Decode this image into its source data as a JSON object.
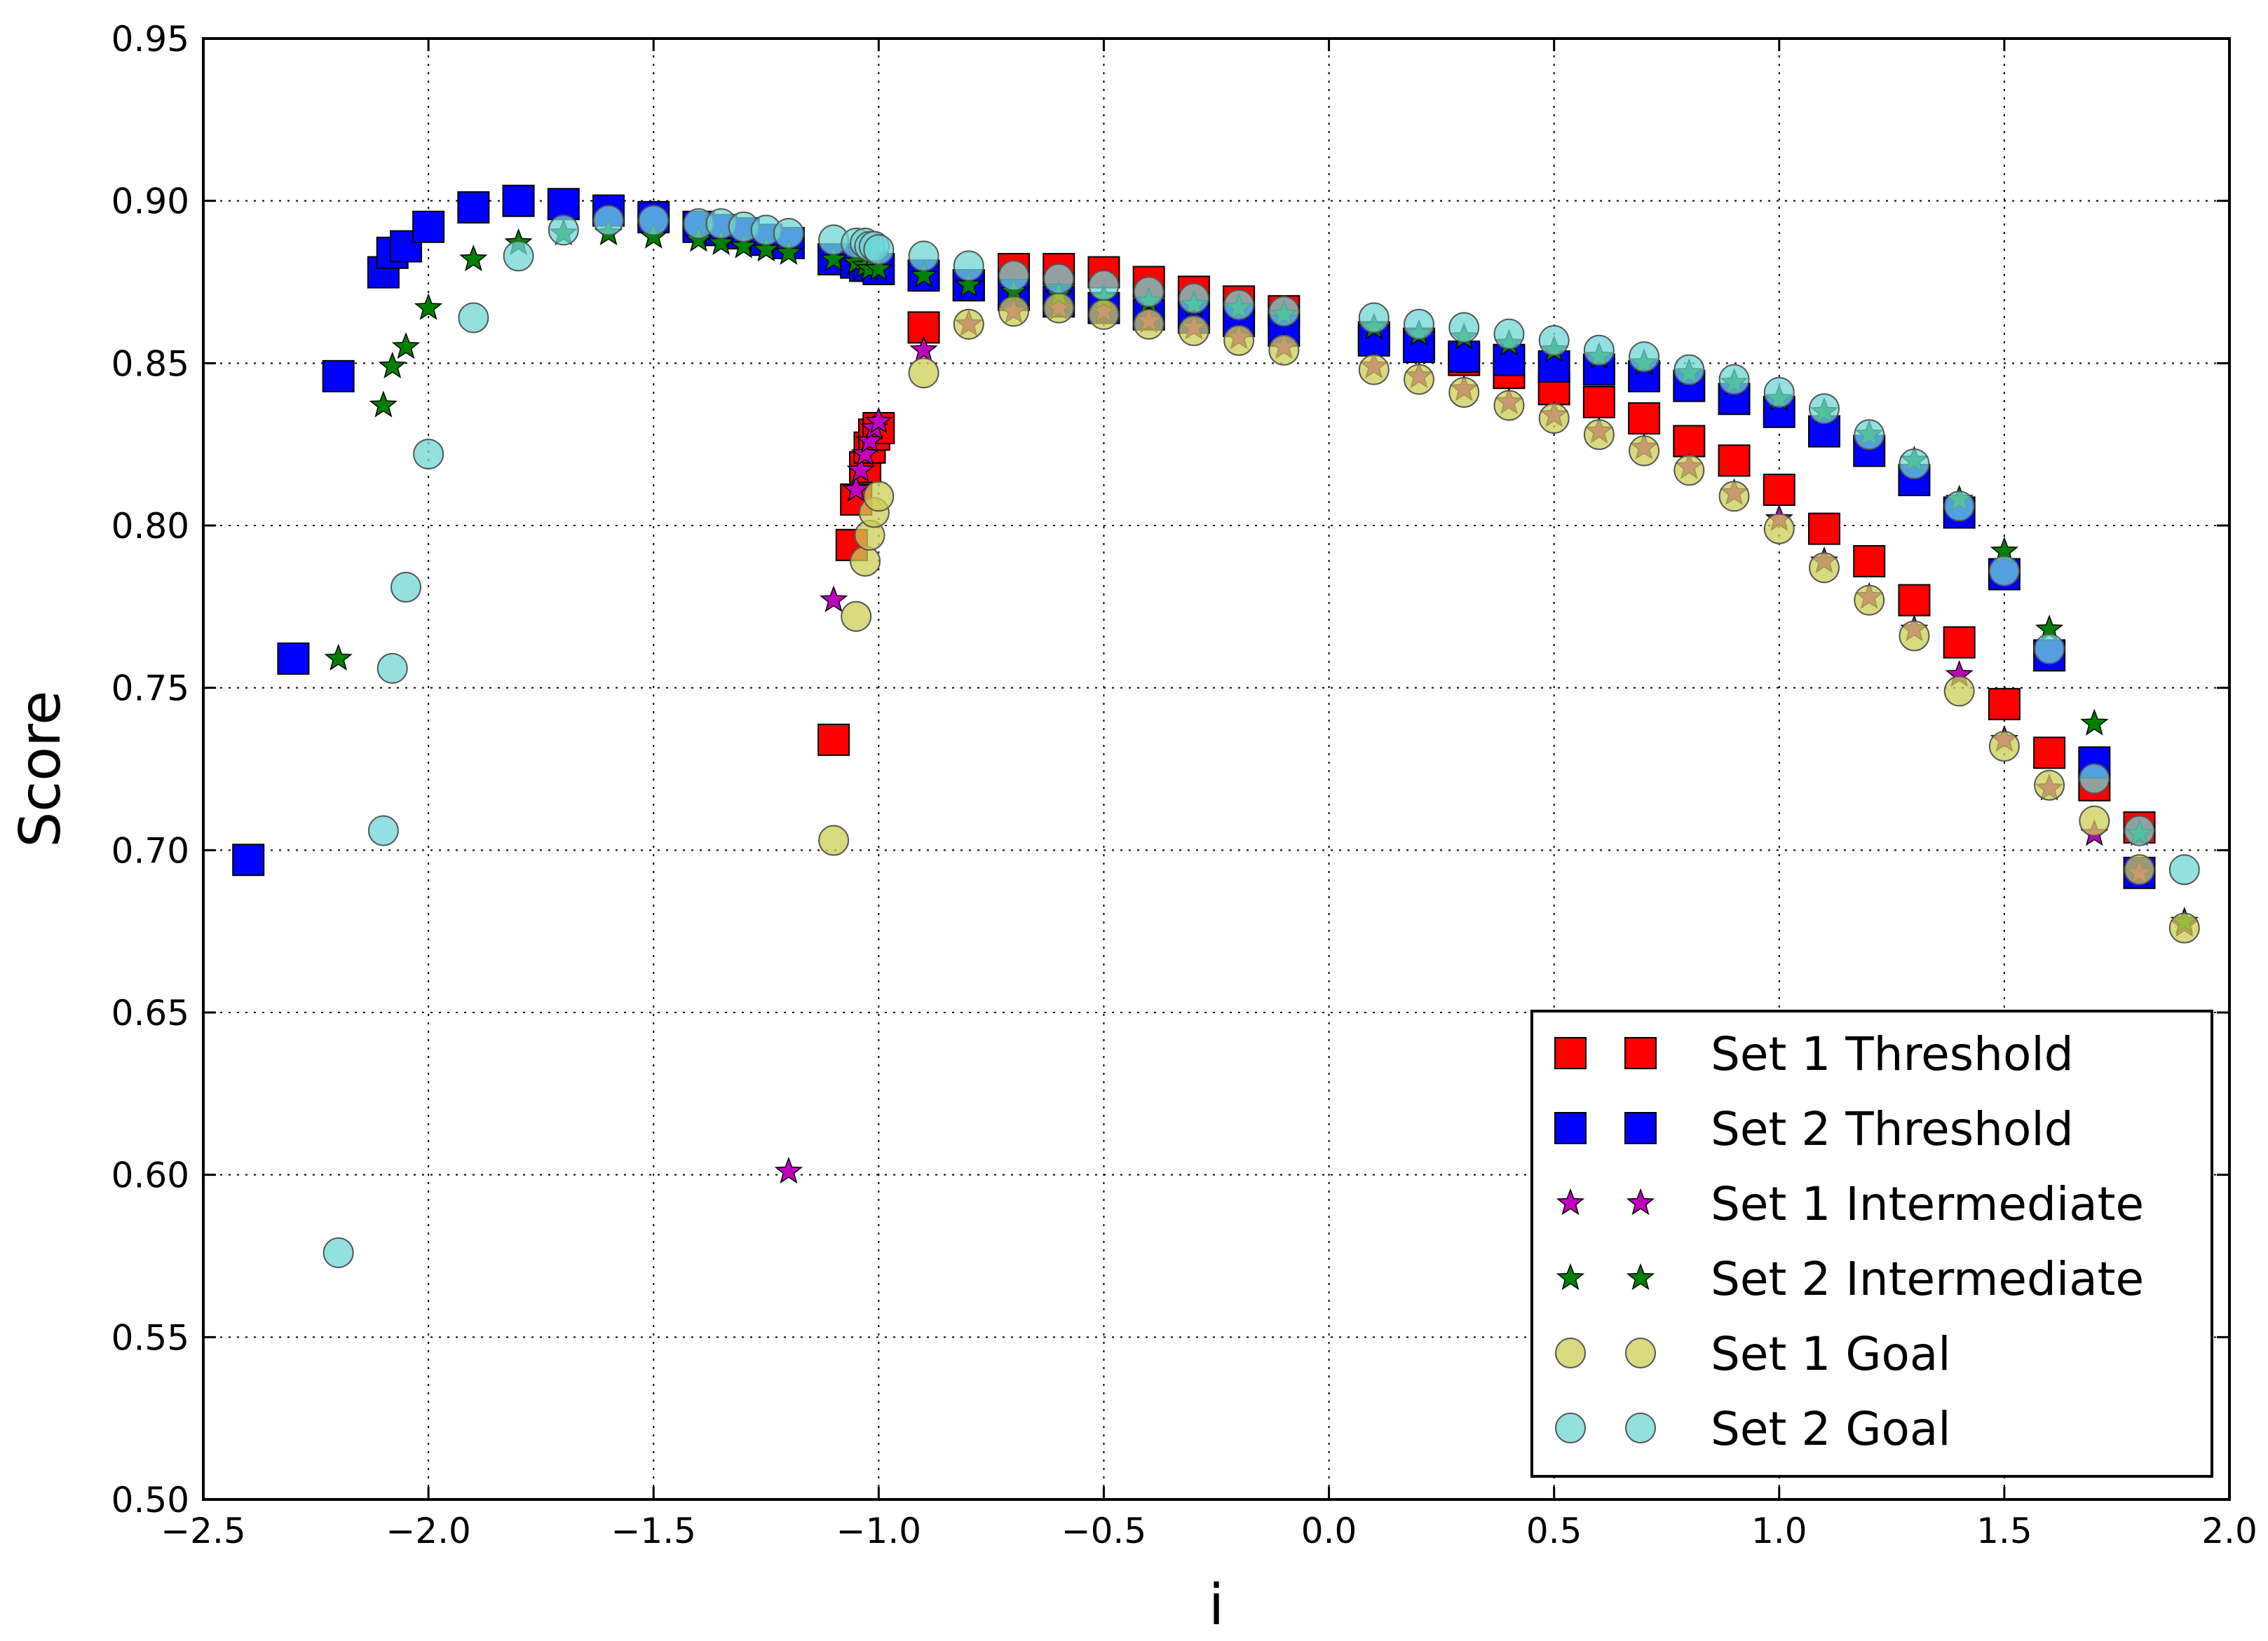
{
  "chart_data": {
    "type": "scatter",
    "title": "",
    "xlabel": "i",
    "ylabel": "Score",
    "xlim": [
      -2.5,
      2.0
    ],
    "ylim": [
      0.5,
      0.95
    ],
    "grid": true,
    "grid_style": "dotted",
    "legend_position": "bottom-right",
    "xticks": [
      -2.5,
      -2.0,
      -1.5,
      -1.0,
      -0.5,
      0.0,
      0.5,
      1.0,
      1.5,
      2.0
    ],
    "xtick_labels": [
      "−2.5",
      "−2.0",
      "−1.5",
      "−1.0",
      "−0.5",
      "0.0",
      "0.5",
      "1.0",
      "1.5",
      "2.0"
    ],
    "yticks": [
      0.5,
      0.55,
      0.6,
      0.65,
      0.7,
      0.75,
      0.8,
      0.85,
      0.9,
      0.95
    ],
    "ytick_labels": [
      "0.50",
      "0.55",
      "0.60",
      "0.65",
      "0.70",
      "0.75",
      "0.80",
      "0.85",
      "0.90",
      "0.95"
    ],
    "series": [
      {
        "name": "Set 1 Threshold",
        "marker": "square",
        "color": "#ff0000",
        "points": [
          [
            -1.1,
            0.734
          ],
          [
            -1.06,
            0.794
          ],
          [
            -1.05,
            0.808
          ],
          [
            -1.03,
            0.818
          ],
          [
            -1.02,
            0.824
          ],
          [
            -1.01,
            0.828
          ],
          [
            -1.0,
            0.83
          ],
          [
            -0.9,
            0.861
          ],
          [
            -0.8,
            0.874
          ],
          [
            -0.7,
            0.879
          ],
          [
            -0.6,
            0.879
          ],
          [
            -0.5,
            0.878
          ],
          [
            -0.4,
            0.875
          ],
          [
            -0.3,
            0.872
          ],
          [
            -0.2,
            0.869
          ],
          [
            -0.1,
            0.866
          ],
          [
            0.1,
            0.858
          ],
          [
            0.2,
            0.856
          ],
          [
            0.3,
            0.851
          ],
          [
            0.4,
            0.847
          ],
          [
            0.5,
            0.842
          ],
          [
            0.6,
            0.838
          ],
          [
            0.7,
            0.833
          ],
          [
            0.8,
            0.826
          ],
          [
            0.9,
            0.82
          ],
          [
            1.0,
            0.811
          ],
          [
            1.1,
            0.799
          ],
          [
            1.2,
            0.789
          ],
          [
            1.3,
            0.777
          ],
          [
            1.4,
            0.764
          ],
          [
            1.5,
            0.745
          ],
          [
            1.6,
            0.73
          ],
          [
            1.7,
            0.72
          ],
          [
            1.8,
            0.707
          ]
        ]
      },
      {
        "name": "Set 2 Threshold",
        "marker": "square",
        "color": "#0000ff",
        "points": [
          [
            -2.4,
            0.697
          ],
          [
            -2.3,
            0.759
          ],
          [
            -2.2,
            0.846
          ],
          [
            -2.1,
            0.878
          ],
          [
            -2.08,
            0.884
          ],
          [
            -2.05,
            0.886
          ],
          [
            -2.0,
            0.892
          ],
          [
            -1.9,
            0.898
          ],
          [
            -1.8,
            0.9
          ],
          [
            -1.7,
            0.899
          ],
          [
            -1.6,
            0.897
          ],
          [
            -1.5,
            0.895
          ],
          [
            -1.4,
            0.892
          ],
          [
            -1.35,
            0.891
          ],
          [
            -1.3,
            0.89
          ],
          [
            -1.25,
            0.888
          ],
          [
            -1.2,
            0.887
          ],
          [
            -1.1,
            0.882
          ],
          [
            -1.05,
            0.881
          ],
          [
            -1.03,
            0.88
          ],
          [
            -1.02,
            0.88
          ],
          [
            -1.0,
            0.879
          ],
          [
            -0.9,
            0.877
          ],
          [
            -0.8,
            0.874
          ],
          [
            -0.7,
            0.871
          ],
          [
            -0.6,
            0.869
          ],
          [
            -0.5,
            0.867
          ],
          [
            -0.4,
            0.865
          ],
          [
            -0.3,
            0.864
          ],
          [
            -0.2,
            0.863
          ],
          [
            -0.1,
            0.86
          ],
          [
            0.1,
            0.857
          ],
          [
            0.2,
            0.855
          ],
          [
            0.3,
            0.852
          ],
          [
            0.4,
            0.851
          ],
          [
            0.5,
            0.849
          ],
          [
            0.6,
            0.848
          ],
          [
            0.7,
            0.846
          ],
          [
            0.8,
            0.843
          ],
          [
            0.9,
            0.839
          ],
          [
            1.0,
            0.835
          ],
          [
            1.1,
            0.829
          ],
          [
            1.2,
            0.823
          ],
          [
            1.3,
            0.814
          ],
          [
            1.4,
            0.804
          ],
          [
            1.5,
            0.785
          ],
          [
            1.6,
            0.76
          ],
          [
            1.7,
            0.727
          ],
          [
            1.8,
            0.693
          ]
        ]
      },
      {
        "name": "Set 1 Intermediate",
        "marker": "star",
        "color": "#bf00bf",
        "points": [
          [
            -1.2,
            0.601
          ],
          [
            -1.1,
            0.777
          ],
          [
            -1.05,
            0.811
          ],
          [
            -1.04,
            0.817
          ],
          [
            -1.03,
            0.822
          ],
          [
            -1.02,
            0.826
          ],
          [
            -1.01,
            0.83
          ],
          [
            -1.0,
            0.832
          ],
          [
            -0.9,
            0.854
          ],
          [
            -0.8,
            0.862
          ],
          [
            -0.7,
            0.866
          ],
          [
            -0.6,
            0.867
          ],
          [
            -0.5,
            0.866
          ],
          [
            -0.4,
            0.863
          ],
          [
            -0.3,
            0.861
          ],
          [
            -0.2,
            0.858
          ],
          [
            -0.1,
            0.855
          ],
          [
            0.1,
            0.849
          ],
          [
            0.2,
            0.846
          ],
          [
            0.3,
            0.842
          ],
          [
            0.4,
            0.838
          ],
          [
            0.5,
            0.834
          ],
          [
            0.6,
            0.829
          ],
          [
            0.7,
            0.824
          ],
          [
            0.8,
            0.818
          ],
          [
            0.9,
            0.81
          ],
          [
            1.0,
            0.802
          ],
          [
            1.1,
            0.789
          ],
          [
            1.2,
            0.778
          ],
          [
            1.3,
            0.768
          ],
          [
            1.4,
            0.754
          ],
          [
            1.5,
            0.734
          ],
          [
            1.6,
            0.719
          ],
          [
            1.7,
            0.705
          ],
          [
            1.8,
            0.693
          ],
          [
            1.9,
            0.677
          ]
        ]
      },
      {
        "name": "Set 2 Intermediate",
        "marker": "star",
        "color": "#008000",
        "points": [
          [
            -2.2,
            0.759
          ],
          [
            -2.1,
            0.837
          ],
          [
            -2.08,
            0.849
          ],
          [
            -2.05,
            0.855
          ],
          [
            -2.0,
            0.867
          ],
          [
            -1.9,
            0.882
          ],
          [
            -1.8,
            0.887
          ],
          [
            -1.7,
            0.89
          ],
          [
            -1.6,
            0.89
          ],
          [
            -1.5,
            0.889
          ],
          [
            -1.4,
            0.888
          ],
          [
            -1.35,
            0.887
          ],
          [
            -1.3,
            0.886
          ],
          [
            -1.25,
            0.885
          ],
          [
            -1.2,
            0.884
          ],
          [
            -1.1,
            0.882
          ],
          [
            -1.05,
            0.881
          ],
          [
            -1.03,
            0.88
          ],
          [
            -1.02,
            0.879
          ],
          [
            -1.0,
            0.879
          ],
          [
            -0.9,
            0.877
          ],
          [
            -0.8,
            0.874
          ],
          [
            -0.7,
            0.872
          ],
          [
            -0.6,
            0.871
          ],
          [
            -0.5,
            0.87
          ],
          [
            -0.4,
            0.869
          ],
          [
            -0.3,
            0.868
          ],
          [
            -0.2,
            0.867
          ],
          [
            -0.1,
            0.865
          ],
          [
            0.1,
            0.861
          ],
          [
            0.2,
            0.859
          ],
          [
            0.3,
            0.858
          ],
          [
            0.4,
            0.856
          ],
          [
            0.5,
            0.854
          ],
          [
            0.6,
            0.852
          ],
          [
            0.7,
            0.85
          ],
          [
            0.8,
            0.847
          ],
          [
            0.9,
            0.844
          ],
          [
            1.0,
            0.839
          ],
          [
            1.1,
            0.835
          ],
          [
            1.2,
            0.828
          ],
          [
            1.3,
            0.82
          ],
          [
            1.4,
            0.808
          ],
          [
            1.5,
            0.792
          ],
          [
            1.6,
            0.768
          ],
          [
            1.7,
            0.739
          ],
          [
            1.8,
            0.705
          ],
          [
            1.9,
            0.678
          ]
        ]
      },
      {
        "name": "Set 1 Goal",
        "marker": "circle",
        "color": "#cccc55",
        "points": [
          [
            -1.1,
            0.703
          ],
          [
            -1.05,
            0.772
          ],
          [
            -1.03,
            0.789
          ],
          [
            -1.02,
            0.797
          ],
          [
            -1.01,
            0.804
          ],
          [
            -1.0,
            0.809
          ],
          [
            -0.9,
            0.847
          ],
          [
            -0.8,
            0.862
          ],
          [
            -0.7,
            0.866
          ],
          [
            -0.6,
            0.867
          ],
          [
            -0.5,
            0.865
          ],
          [
            -0.4,
            0.862
          ],
          [
            -0.3,
            0.86
          ],
          [
            -0.2,
            0.857
          ],
          [
            -0.1,
            0.854
          ],
          [
            0.1,
            0.848
          ],
          [
            0.2,
            0.845
          ],
          [
            0.3,
            0.841
          ],
          [
            0.4,
            0.837
          ],
          [
            0.5,
            0.833
          ],
          [
            0.6,
            0.828
          ],
          [
            0.7,
            0.823
          ],
          [
            0.8,
            0.817
          ],
          [
            0.9,
            0.809
          ],
          [
            1.0,
            0.799
          ],
          [
            1.1,
            0.787
          ],
          [
            1.2,
            0.777
          ],
          [
            1.3,
            0.766
          ],
          [
            1.4,
            0.749
          ],
          [
            1.5,
            0.732
          ],
          [
            1.6,
            0.72
          ],
          [
            1.7,
            0.709
          ],
          [
            1.8,
            0.694
          ],
          [
            1.9,
            0.676
          ]
        ]
      },
      {
        "name": "Set 2 Goal",
        "marker": "circle",
        "color": "#6fd6d6",
        "points": [
          [
            -2.2,
            0.576
          ],
          [
            -2.1,
            0.706
          ],
          [
            -2.08,
            0.756
          ],
          [
            -2.05,
            0.781
          ],
          [
            -2.0,
            0.822
          ],
          [
            -1.9,
            0.864
          ],
          [
            -1.8,
            0.883
          ],
          [
            -1.7,
            0.891
          ],
          [
            -1.6,
            0.894
          ],
          [
            -1.5,
            0.894
          ],
          [
            -1.4,
            0.893
          ],
          [
            -1.35,
            0.893
          ],
          [
            -1.3,
            0.892
          ],
          [
            -1.25,
            0.891
          ],
          [
            -1.2,
            0.89
          ],
          [
            -1.1,
            0.888
          ],
          [
            -1.05,
            0.887
          ],
          [
            -1.03,
            0.887
          ],
          [
            -1.02,
            0.886
          ],
          [
            -1.01,
            0.886
          ],
          [
            -1.0,
            0.885
          ],
          [
            -0.9,
            0.883
          ],
          [
            -0.8,
            0.88
          ],
          [
            -0.7,
            0.877
          ],
          [
            -0.6,
            0.876
          ],
          [
            -0.5,
            0.874
          ],
          [
            -0.4,
            0.872
          ],
          [
            -0.3,
            0.87
          ],
          [
            -0.2,
            0.868
          ],
          [
            -0.1,
            0.866
          ],
          [
            0.1,
            0.864
          ],
          [
            0.2,
            0.862
          ],
          [
            0.3,
            0.861
          ],
          [
            0.4,
            0.859
          ],
          [
            0.5,
            0.857
          ],
          [
            0.6,
            0.854
          ],
          [
            0.7,
            0.852
          ],
          [
            0.8,
            0.848
          ],
          [
            0.9,
            0.845
          ],
          [
            1.0,
            0.841
          ],
          [
            1.1,
            0.836
          ],
          [
            1.2,
            0.828
          ],
          [
            1.3,
            0.819
          ],
          [
            1.4,
            0.806
          ],
          [
            1.5,
            0.786
          ],
          [
            1.6,
            0.762
          ],
          [
            1.7,
            0.722
          ],
          [
            1.8,
            0.706
          ],
          [
            1.9,
            0.694
          ]
        ]
      }
    ]
  }
}
